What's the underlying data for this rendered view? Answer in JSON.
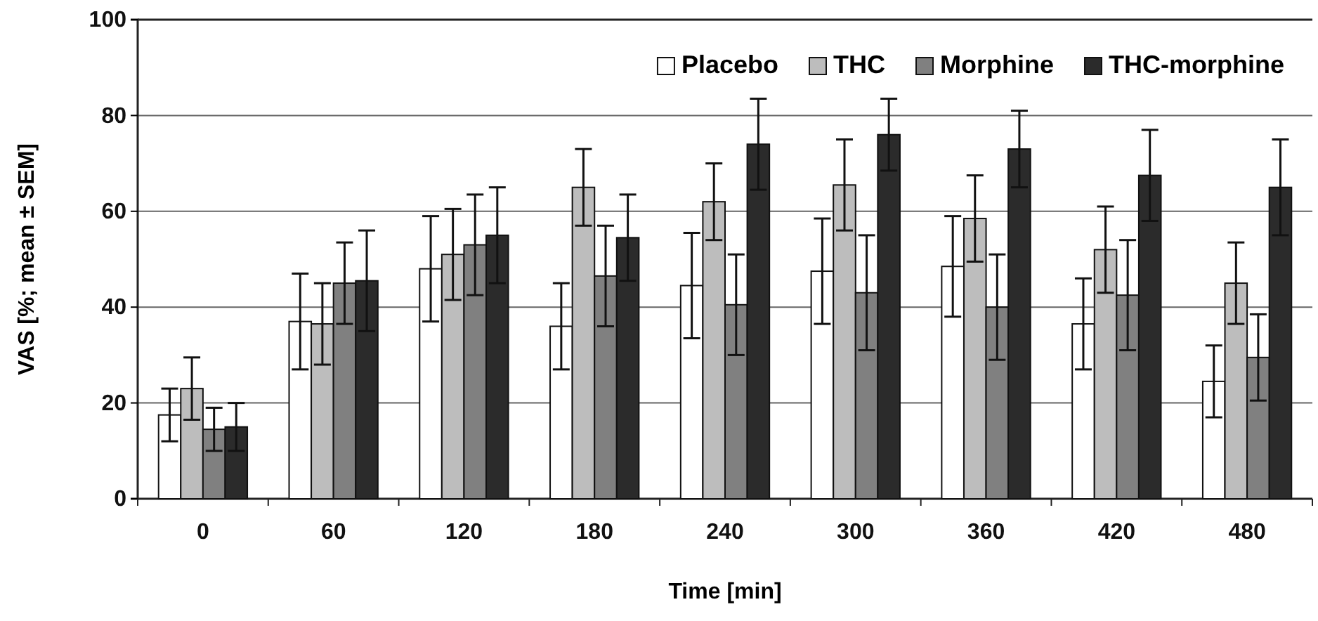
{
  "chart_data": {
    "type": "bar",
    "xlabel": "Time [min]",
    "ylabel": "VAS [%; mean ± SEM]",
    "categories": [
      "0",
      "60",
      "120",
      "180",
      "240",
      "300",
      "360",
      "420",
      "480"
    ],
    "series": [
      {
        "name": "Placebo",
        "color": "#ffffff",
        "values": [
          17.5,
          37,
          48,
          36,
          44.5,
          47.5,
          48.5,
          36.5,
          24.5
        ],
        "errors": [
          5.5,
          10,
          11,
          9,
          11,
          11,
          10.5,
          9.5,
          7.5
        ]
      },
      {
        "name": "THC",
        "color": "#bdbdbd",
        "values": [
          23,
          36.5,
          51,
          65,
          62,
          65.5,
          58.5,
          52,
          45
        ],
        "errors": [
          6.5,
          8.5,
          9.5,
          8,
          8,
          9.5,
          9,
          9,
          8.5
        ]
      },
      {
        "name": "Morphine",
        "color": "#808080",
        "values": [
          14.5,
          45,
          53,
          46.5,
          40.5,
          43,
          40,
          42.5,
          29.5
        ],
        "errors": [
          4.5,
          8.5,
          10.5,
          10.5,
          10.5,
          12,
          11,
          11.5,
          9
        ]
      },
      {
        "name": "THC-morphine",
        "color": "#2b2b2b",
        "values": [
          15,
          45.5,
          55,
          54.5,
          74,
          76,
          73,
          67.5,
          65
        ],
        "errors": [
          5,
          10.5,
          10,
          9,
          9.5,
          7.5,
          8,
          9.5,
          10
        ]
      }
    ],
    "ylim": [
      0,
      100
    ],
    "yticks": [
      0,
      20,
      40,
      60,
      80,
      100
    ],
    "grid": "y",
    "legend": "top right"
  }
}
